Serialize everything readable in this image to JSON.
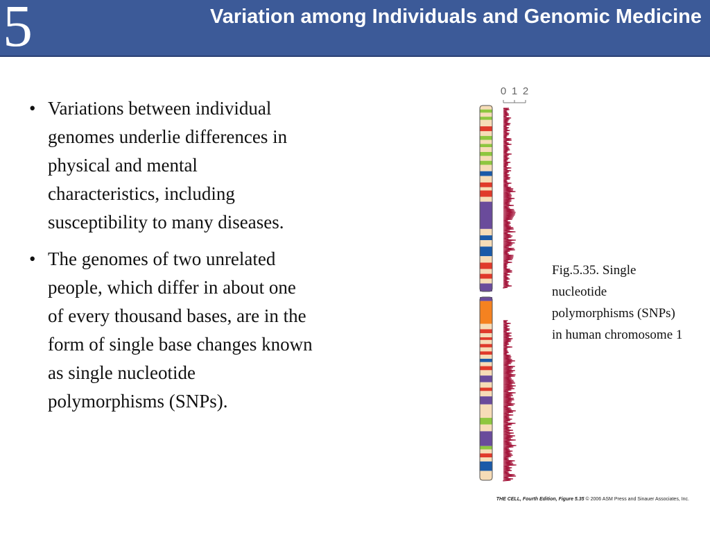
{
  "header": {
    "chapter_number": "5",
    "title": "Variation among Individuals and Genomic Medicine"
  },
  "bullets": [
    "Variations between individual genomes underlie differences in physical and mental characteristics, including susceptibility to many diseases.",
    "The genomes of two unrelated people, which differ in about one of every thousand bases, are in the form of single base changes known as single nucleotide polymorphisms (SNPs)."
  ],
  "figure": {
    "scale_labels": [
      "0",
      "1",
      "2"
    ],
    "band_colors": {
      "cream": "#f6dcb7",
      "green": "#8ec63f",
      "red": "#e03a2b",
      "blue": "#1b5aa8",
      "purple": "#6a4b9b",
      "orange": "#f58220"
    },
    "snp_color": "#a4163b",
    "caption": "Fig.5.35.  Single nucleotide polymorphisms (SNPs) in human chromosome 1"
  },
  "credit": {
    "book": "THE CELL, Fourth Edition, Figure 5.35",
    "copyright": "© 2006 ASM Press and Sinauer Associates, Inc."
  }
}
